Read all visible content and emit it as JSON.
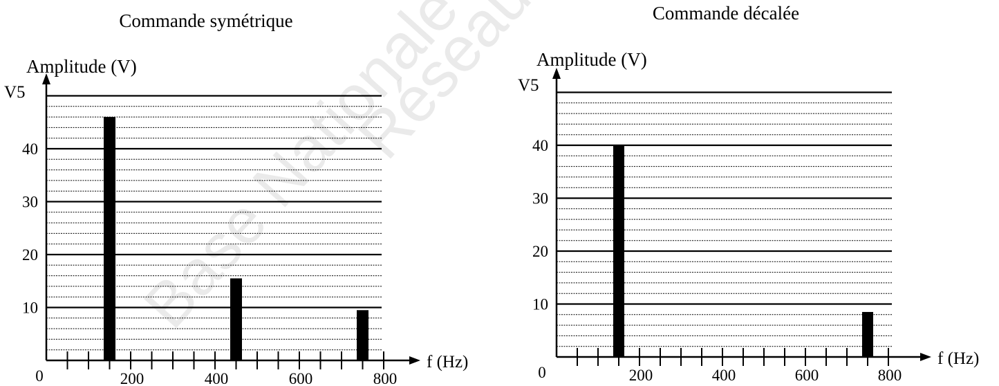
{
  "watermark": {
    "line1": "Base Nationale de l'Enseignement",
    "line2": "Réseau SCEREN"
  },
  "chart_data": [
    {
      "type": "bar",
      "title": "Commande symétrique",
      "ylabel": "Amplitude (V)",
      "ysymbol": "V5",
      "xlabel": "f (Hz)",
      "origin_label": "0",
      "xlim": [
        0,
        800
      ],
      "ylim": [
        0,
        50
      ],
      "xticks": [
        200,
        400,
        600,
        800
      ],
      "yticks": [
        10,
        20,
        30,
        40
      ],
      "x": [
        150,
        450,
        750
      ],
      "values": [
        46,
        15.5,
        9.5
      ],
      "grid": true
    },
    {
      "type": "bar",
      "title": "Commande décalée",
      "ylabel": "Amplitude (V)",
      "ysymbol": "V5",
      "xlabel": "f (Hz)",
      "origin_label": "0",
      "xlim": [
        0,
        800
      ],
      "ylim": [
        0,
        50
      ],
      "xticks": [
        200,
        400,
        600,
        800
      ],
      "yticks": [
        10,
        20,
        30,
        40
      ],
      "x": [
        150,
        750
      ],
      "values": [
        40,
        8.5
      ],
      "grid": true
    }
  ]
}
